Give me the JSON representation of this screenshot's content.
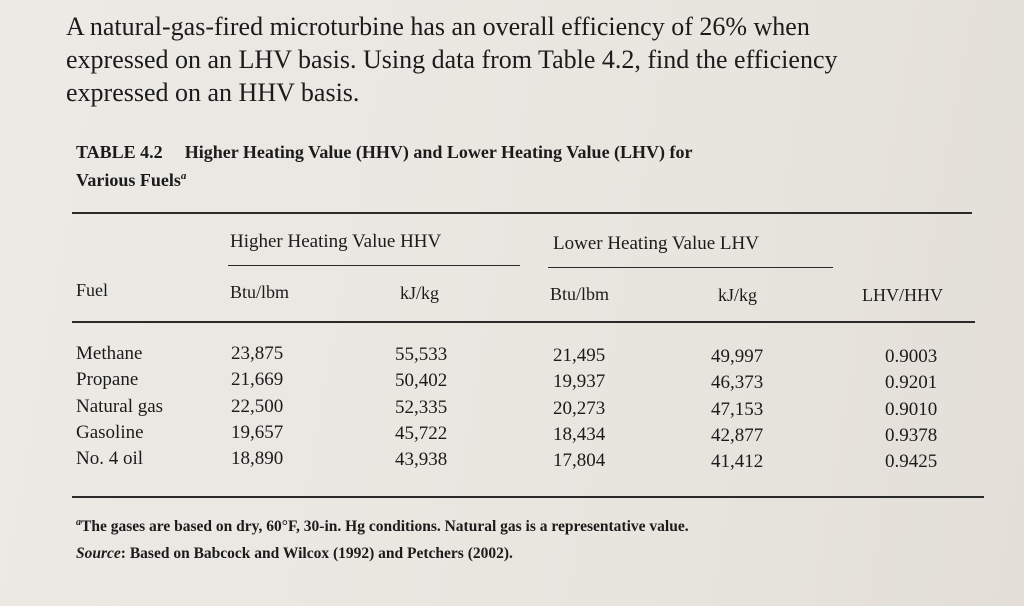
{
  "problem": {
    "lines": [
      "A natural-gas-fired microturbine has an overall efficiency of 26% when",
      "expressed on an LHV basis. Using data from Table 4.2, find the efficiency",
      "expressed on an HHV basis."
    ]
  },
  "table": {
    "number": "TABLE 4.2",
    "title_line1": "Higher Heating Value (HHV) and Lower Heating Value (LHV) for",
    "title_line2": "Various Fuels",
    "title_mark": "a",
    "group_hhv": "Higher Heating Value HHV",
    "group_lhv": "Lower Heating Value LHV",
    "columns": [
      "Fuel",
      "Btu/lbm",
      "kJ/kg",
      "Btu/lbm",
      "kJ/kg",
      "LHV/HHV"
    ],
    "rows": [
      [
        "Methane",
        "23,875",
        "55,533",
        "21,495",
        "49,997",
        "0.9003"
      ],
      [
        "Propane",
        "21,669",
        "50,402",
        "19,937",
        "46,373",
        "0.9201"
      ],
      [
        "Natural gas",
        "22,500",
        "52,335",
        "20,273",
        "47,153",
        "0.9010"
      ],
      [
        "Gasoline",
        "19,657",
        "45,722",
        "18,434",
        "42,877",
        "0.9378"
      ],
      [
        "No. 4 oil",
        "18,890",
        "43,938",
        "17,804",
        "41,412",
        "0.9425"
      ]
    ]
  },
  "footnote": {
    "mark": "a",
    "text": "The gases are based on dry, 60°F, 30-in. Hg conditions. Natural gas is a representative value.",
    "source_label": "Source",
    "source_text": ": Based on Babcock and Wilcox (1992) and Petchers (2002)."
  }
}
